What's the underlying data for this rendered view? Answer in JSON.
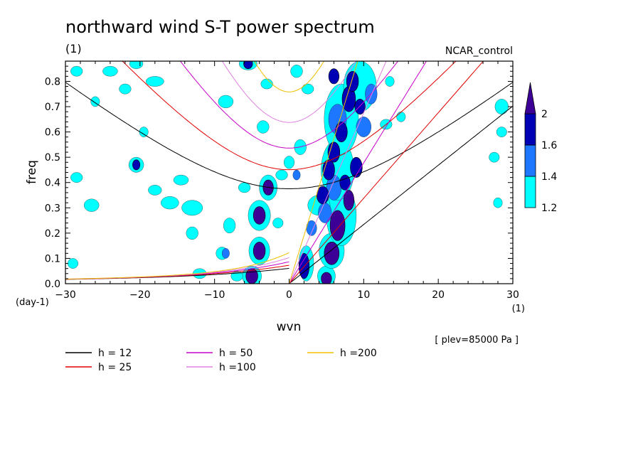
{
  "chart_data": {
    "type": "contour",
    "title": "northward wind S-T power spectrum",
    "subtitle_left": "(1)",
    "subtitle_right": "NCAR_control",
    "xlabel": "wvn",
    "ylabel": "freq",
    "x_unit_label": "(1)",
    "y_unit_label": "(day-1)",
    "level_note": "[ plev=85000 Pa ]",
    "xlim": [
      -30,
      30
    ],
    "ylim": [
      0,
      0.88
    ],
    "x_ticks": [
      -30,
      -20,
      -10,
      0,
      10,
      20,
      30
    ],
    "y_ticks": [
      0.0,
      0.1,
      0.2,
      0.3,
      0.4,
      0.5,
      0.6,
      0.7,
      0.8
    ],
    "y_tick_labels": [
      "0.0",
      "0.1",
      "0.2",
      "0.3",
      "0.4",
      "0.5",
      "0.6",
      "0.7",
      "0.8"
    ],
    "colorbar": {
      "levels": [
        1.2,
        1.4,
        1.6,
        2
      ],
      "tick_labels": [
        "1.2",
        "1.4",
        "1.6",
        "2"
      ],
      "colors": [
        "#00ffff",
        "#1e78ff",
        "#0000b4",
        "#3c0096"
      ]
    },
    "contour_colors": {
      "c1": "#00ffff",
      "c2": "#1e78ff",
      "c3": "#0000b4",
      "c4": "#3c0096"
    },
    "dispersion_curves": [
      {
        "h": 12,
        "label": "h = 12",
        "color": "#000000"
      },
      {
        "h": 25,
        "label": "h = 25",
        "color": "#e00000"
      },
      {
        "h": 50,
        "label": "h = 50",
        "color": "#c800c8"
      },
      {
        "h": 100,
        "label": "h =100",
        "color": "#e080e0"
      },
      {
        "h": 200,
        "label": "h =200",
        "color": "#f0c000"
      }
    ],
    "spectral_blobs": [
      {
        "k": -2.8,
        "f": 0.38,
        "rk": 0.7,
        "rf": 0.03,
        "lvl": 4
      },
      {
        "k": -4.0,
        "f": 0.27,
        "rk": 0.8,
        "rf": 0.035,
        "lvl": 4
      },
      {
        "k": -4.0,
        "f": 0.13,
        "rk": 0.8,
        "rf": 0.035,
        "lvl": 4
      },
      {
        "k": -5.0,
        "f": 0.03,
        "rk": 0.8,
        "rf": 0.03,
        "lvl": 4
      },
      {
        "k": 5.0,
        "f": 0.02,
        "rk": 0.7,
        "rf": 0.025,
        "lvl": 4
      },
      {
        "k": 5.7,
        "f": 0.12,
        "rk": 1.0,
        "rf": 0.045,
        "lvl": 4
      },
      {
        "k": 6.5,
        "f": 0.23,
        "rk": 1.0,
        "rf": 0.06,
        "lvl": 4
      },
      {
        "k": 8.0,
        "f": 0.33,
        "rk": 0.7,
        "rf": 0.04,
        "lvl": 4
      },
      {
        "k": 2.0,
        "f": 0.07,
        "rk": 0.7,
        "rf": 0.05,
        "lvl": 3
      },
      {
        "k": 4.5,
        "f": 0.35,
        "rk": 0.8,
        "rf": 0.035,
        "lvl": 3
      },
      {
        "k": 5.3,
        "f": 0.45,
        "rk": 0.8,
        "rf": 0.04,
        "lvl": 3
      },
      {
        "k": 6.0,
        "f": 0.52,
        "rk": 0.8,
        "rf": 0.04,
        "lvl": 3
      },
      {
        "k": 7.0,
        "f": 0.6,
        "rk": 0.8,
        "rf": 0.04,
        "lvl": 3
      },
      {
        "k": 8.0,
        "f": 0.73,
        "rk": 0.9,
        "rf": 0.05,
        "lvl": 3
      },
      {
        "k": 8.5,
        "f": 0.8,
        "rk": 0.8,
        "rf": 0.04,
        "lvl": 3
      },
      {
        "k": 9.5,
        "f": 0.7,
        "rk": 0.7,
        "rf": 0.03,
        "lvl": 3
      },
      {
        "k": 9.0,
        "f": 0.46,
        "rk": 0.8,
        "rf": 0.04,
        "lvl": 3
      },
      {
        "k": 7.5,
        "f": 0.4,
        "rk": 0.7,
        "rf": 0.03,
        "lvl": 3
      },
      {
        "k": 6.0,
        "f": 0.82,
        "rk": 0.7,
        "rf": 0.03,
        "lvl": 3
      },
      {
        "k": -5.5,
        "f": 0.87,
        "rk": 0.6,
        "rf": 0.02,
        "lvl": 3
      },
      {
        "k": -20.5,
        "f": 0.47,
        "rk": 0.5,
        "rf": 0.02,
        "lvl": 3
      },
      {
        "k": 4.8,
        "f": 0.28,
        "rk": 0.9,
        "rf": 0.04,
        "lvl": 2
      },
      {
        "k": 6.0,
        "f": 0.38,
        "rk": 1.0,
        "rf": 0.05,
        "lvl": 2
      },
      {
        "k": 6.5,
        "f": 0.65,
        "rk": 1.2,
        "rf": 0.06,
        "lvl": 2
      },
      {
        "k": 10.0,
        "f": 0.62,
        "rk": 1.0,
        "rf": 0.04,
        "lvl": 2
      },
      {
        "k": 11.0,
        "f": 0.75,
        "rk": 0.8,
        "rf": 0.04,
        "lvl": 2
      },
      {
        "k": 3.0,
        "f": 0.22,
        "rk": 0.7,
        "rf": 0.03,
        "lvl": 2
      },
      {
        "k": 1.0,
        "f": 0.43,
        "rk": 0.5,
        "rf": 0.02,
        "lvl": 2
      },
      {
        "k": -8.5,
        "f": 0.12,
        "rk": 0.5,
        "rf": 0.02,
        "lvl": 2
      },
      {
        "k": -20.5,
        "f": 0.47,
        "rk": 1.0,
        "rf": 0.03,
        "lvl": 1
      },
      {
        "k": -2.8,
        "f": 0.38,
        "rk": 1.2,
        "rf": 0.05,
        "lvl": 1
      },
      {
        "k": -4.0,
        "f": 0.27,
        "rk": 1.5,
        "rf": 0.06,
        "lvl": 1
      },
      {
        "k": -4.0,
        "f": 0.13,
        "rk": 1.4,
        "rf": 0.055,
        "lvl": 1
      },
      {
        "k": -5.0,
        "f": 0.03,
        "rk": 1.3,
        "rf": 0.04,
        "lvl": 1
      },
      {
        "k": 5.0,
        "f": 0.03,
        "rk": 1.2,
        "rf": 0.04,
        "lvl": 1
      },
      {
        "k": 5.7,
        "f": 0.13,
        "rk": 1.7,
        "rf": 0.07,
        "lvl": 1
      },
      {
        "k": 7.0,
        "f": 0.27,
        "rk": 2.0,
        "rf": 0.12,
        "lvl": 1
      },
      {
        "k": 6.5,
        "f": 0.45,
        "rk": 2.2,
        "rf": 0.12,
        "lvl": 1
      },
      {
        "k": 7.0,
        "f": 0.65,
        "rk": 2.3,
        "rf": 0.14,
        "lvl": 1
      },
      {
        "k": 9.5,
        "f": 0.78,
        "rk": 2.2,
        "rf": 0.1,
        "lvl": 1
      },
      {
        "k": 2.3,
        "f": 0.08,
        "rk": 1.0,
        "rf": 0.07,
        "lvl": 1
      },
      {
        "k": 4.0,
        "f": 0.31,
        "rk": 1.5,
        "rf": 0.04,
        "lvl": 1
      },
      {
        "k": -9.0,
        "f": 0.12,
        "rk": 0.8,
        "rf": 0.025,
        "lvl": 1
      },
      {
        "k": -8.0,
        "f": 0.23,
        "rk": 0.8,
        "rf": 0.03,
        "lvl": 1
      },
      {
        "k": -13.0,
        "f": 0.3,
        "rk": 1.4,
        "rf": 0.03,
        "lvl": 1
      },
      {
        "k": -16.0,
        "f": 0.32,
        "rk": 1.2,
        "rf": 0.025,
        "lvl": 1
      },
      {
        "k": -14.5,
        "f": 0.41,
        "rk": 1.0,
        "rf": 0.02,
        "lvl": 1
      },
      {
        "k": -18.0,
        "f": 0.37,
        "rk": 0.9,
        "rf": 0.02,
        "lvl": 1
      },
      {
        "k": -13.0,
        "f": 0.2,
        "rk": 0.8,
        "rf": 0.025,
        "lvl": 1
      },
      {
        "k": -26.5,
        "f": 0.31,
        "rk": 1.0,
        "rf": 0.025,
        "lvl": 1
      },
      {
        "k": -28.5,
        "f": 0.42,
        "rk": 0.8,
        "rf": 0.02,
        "lvl": 1
      },
      {
        "k": -29.0,
        "f": 0.08,
        "rk": 0.7,
        "rf": 0.02,
        "lvl": 1
      },
      {
        "k": -20.5,
        "f": 0.87,
        "rk": 0.9,
        "rf": 0.02,
        "lvl": 1
      },
      {
        "k": -24.0,
        "f": 0.84,
        "rk": 1.0,
        "rf": 0.02,
        "lvl": 1
      },
      {
        "k": -28.5,
        "f": 0.84,
        "rk": 0.8,
        "rf": 0.02,
        "lvl": 1
      },
      {
        "k": -18.0,
        "f": 0.8,
        "rk": 1.2,
        "rf": 0.02,
        "lvl": 1
      },
      {
        "k": -22.0,
        "f": 0.77,
        "rk": 0.8,
        "rf": 0.02,
        "lvl": 1
      },
      {
        "k": -26.0,
        "f": 0.72,
        "rk": 0.6,
        "rf": 0.02,
        "lvl": 1
      },
      {
        "k": -8.5,
        "f": 0.72,
        "rk": 1.0,
        "rf": 0.025,
        "lvl": 1
      },
      {
        "k": -3.5,
        "f": 0.62,
        "rk": 0.8,
        "rf": 0.025,
        "lvl": 1
      },
      {
        "k": -3.0,
        "f": 0.79,
        "rk": 0.8,
        "rf": 0.02,
        "lvl": 1
      },
      {
        "k": -5.5,
        "f": 0.87,
        "rk": 1.2,
        "rf": 0.025,
        "lvl": 1
      },
      {
        "k": 0.0,
        "f": 0.48,
        "rk": 0.7,
        "rf": 0.025,
        "lvl": 1
      },
      {
        "k": 1.5,
        "f": 0.54,
        "rk": 0.8,
        "rf": 0.03,
        "lvl": 1
      },
      {
        "k": 1.0,
        "f": 0.84,
        "rk": 0.8,
        "rf": 0.025,
        "lvl": 1
      },
      {
        "k": 2.5,
        "f": 0.77,
        "rk": 0.8,
        "rf": 0.02,
        "lvl": 1
      },
      {
        "k": 13.0,
        "f": 0.63,
        "rk": 0.8,
        "rf": 0.02,
        "lvl": 1
      },
      {
        "k": 15.0,
        "f": 0.66,
        "rk": 0.6,
        "rf": 0.02,
        "lvl": 1
      },
      {
        "k": 13.5,
        "f": 0.8,
        "rk": 0.6,
        "rf": 0.02,
        "lvl": 1
      },
      {
        "k": 28.5,
        "f": 0.7,
        "rk": 0.9,
        "rf": 0.03,
        "lvl": 1
      },
      {
        "k": 28.5,
        "f": 0.6,
        "rk": 0.7,
        "rf": 0.02,
        "lvl": 1
      },
      {
        "k": 27.5,
        "f": 0.5,
        "rk": 0.7,
        "rf": 0.02,
        "lvl": 1
      },
      {
        "k": 28.0,
        "f": 0.32,
        "rk": 0.6,
        "rf": 0.02,
        "lvl": 1
      },
      {
        "k": -12.0,
        "f": 0.04,
        "rk": 0.9,
        "rf": 0.02,
        "lvl": 1
      },
      {
        "k": -7.0,
        "f": 0.03,
        "rk": 0.8,
        "rf": 0.02,
        "lvl": 1
      },
      {
        "k": -1.0,
        "f": 0.43,
        "rk": 0.8,
        "rf": 0.02,
        "lvl": 1
      },
      {
        "k": -6.0,
        "f": 0.38,
        "rk": 0.8,
        "rf": 0.02,
        "lvl": 1
      },
      {
        "k": -1.5,
        "f": 0.24,
        "rk": 0.7,
        "rf": 0.02,
        "lvl": 1
      },
      {
        "k": -19.5,
        "f": 0.6,
        "rk": 0.6,
        "rf": 0.02,
        "lvl": 1
      }
    ]
  }
}
